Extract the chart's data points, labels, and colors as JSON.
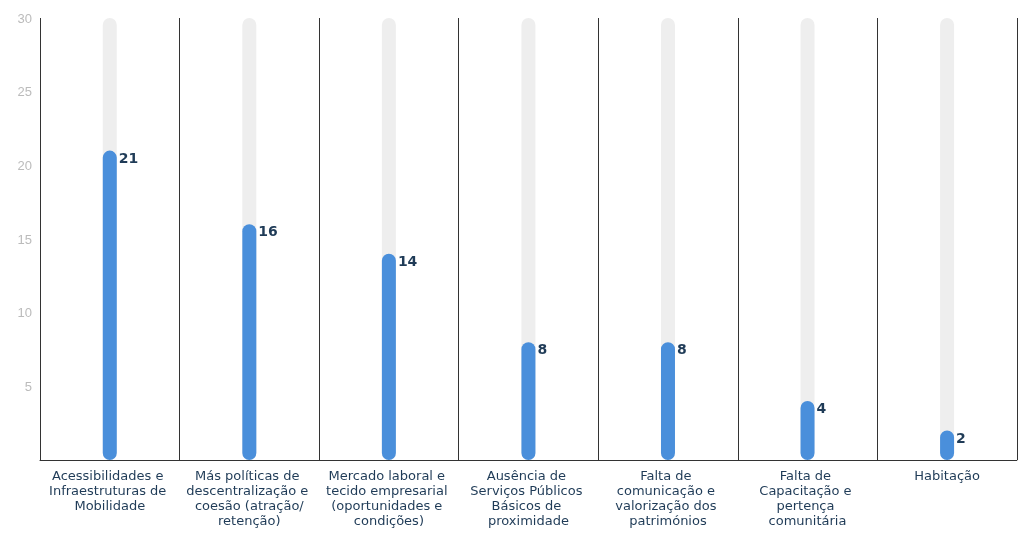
{
  "chart_data": {
    "type": "bar",
    "categories": [
      "Acessibilidades e Infraestruturas de Mobilidade",
      "Más políticas de descentralização e coesão (atração/retenção)",
      "Mercado laboral e tecido empresarial (oportunidades e condições)",
      "Ausência de Serviços Públicos Básicos de proximidade",
      "Falta de comunicação e valorização dos patrimónios",
      "Falta de Capacitação e pertença comunitária",
      "Habitação"
    ],
    "values": [
      21,
      16,
      14,
      8,
      8,
      4,
      2
    ],
    "color": "#4a8fdb",
    "ylim": [
      0,
      30
    ],
    "yticks": [
      5,
      10,
      15,
      20,
      25,
      30
    ],
    "data_labels": true,
    "grid": "x"
  }
}
